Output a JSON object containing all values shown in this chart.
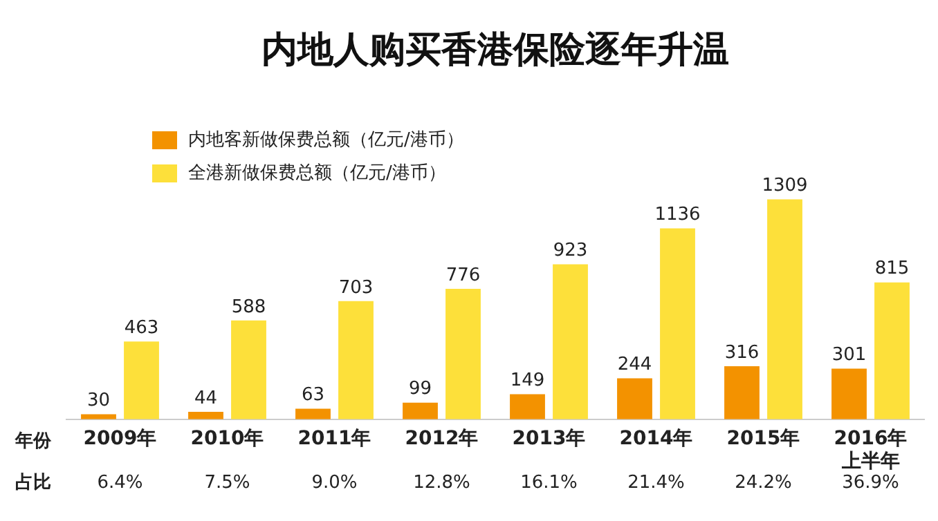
{
  "chart_data": {
    "type": "bar",
    "title": "内地人购买香港保险逐年升温",
    "xlabel": "年份",
    "categories": [
      "2009年",
      "2010年",
      "2011年",
      "2012年",
      "2013年",
      "2014年",
      "2015年",
      "2016年上半年"
    ],
    "series": [
      {
        "name": "内地客新做保费总额（亿元/港币）",
        "color": "#f39200",
        "values": [
          30,
          44,
          63,
          99,
          149,
          244,
          316,
          301
        ]
      },
      {
        "name": "全港新做保费总额（亿元/港币）",
        "color": "#fde03a",
        "values": [
          463,
          588,
          703,
          776,
          923,
          1136,
          1309,
          815
        ]
      }
    ],
    "data_labels": true,
    "legend": "top left",
    "grid": false,
    "annotations": [
      "占比",
      "6.4%",
      "7.5%",
      "9.0%",
      "12.8%",
      "16.1%",
      "21.4%",
      "24.2%",
      "36.9%"
    ]
  }
}
